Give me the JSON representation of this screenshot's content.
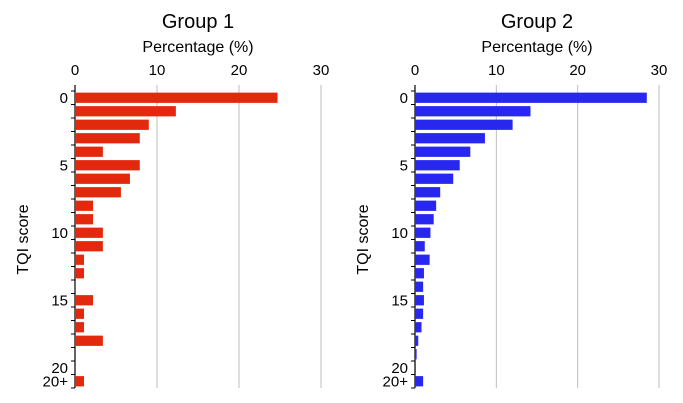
{
  "chart_data": [
    {
      "type": "bar",
      "orientation": "horizontal",
      "title": "Group 1",
      "xlabel": "Percentage (%)",
      "ylabel": "TQI score",
      "xlim": [
        0,
        30
      ],
      "xticks": [
        "0",
        "10",
        "20",
        "30"
      ],
      "categories": [
        "0",
        "1",
        "2",
        "3",
        "4",
        "5",
        "6",
        "7",
        "8",
        "9",
        "10",
        "11",
        "12",
        "13",
        "14",
        "15",
        "16",
        "17",
        "18",
        "19",
        "20",
        "20+"
      ],
      "ytick_labels": [
        {
          "category": "0",
          "label": "0"
        },
        {
          "category": "5",
          "label": "5"
        },
        {
          "category": "10",
          "label": "10"
        },
        {
          "category": "15",
          "label": "15"
        },
        {
          "category": "20",
          "label": "20"
        },
        {
          "category": "20+",
          "label": "20+"
        }
      ],
      "values": [
        24.7,
        12.3,
        9.0,
        7.9,
        3.4,
        7.9,
        6.7,
        5.6,
        2.2,
        2.2,
        3.4,
        3.4,
        1.1,
        1.1,
        0,
        2.2,
        1.1,
        1.1,
        3.4,
        0,
        0,
        1.1
      ],
      "color": "#e3290d",
      "grid": true
    },
    {
      "type": "bar",
      "orientation": "horizontal",
      "title": "Group 2",
      "xlabel": "Percentage (%)",
      "ylabel": "TQI score",
      "xlim": [
        0,
        30
      ],
      "xticks": [
        "0",
        "10",
        "20",
        "30"
      ],
      "categories": [
        "0",
        "1",
        "2",
        "3",
        "4",
        "5",
        "6",
        "7",
        "8",
        "9",
        "10",
        "11",
        "12",
        "13",
        "14",
        "15",
        "16",
        "17",
        "18",
        "19",
        "20",
        "20+"
      ],
      "ytick_labels": [
        {
          "category": "0",
          "label": "0"
        },
        {
          "category": "5",
          "label": "5"
        },
        {
          "category": "10",
          "label": "10"
        },
        {
          "category": "15",
          "label": "15"
        },
        {
          "category": "20",
          "label": "20"
        },
        {
          "category": "20+",
          "label": "20+"
        }
      ],
      "values": [
        28.5,
        14.2,
        12.0,
        8.6,
        6.8,
        5.5,
        4.7,
        3.1,
        2.6,
        2.3,
        1.9,
        1.2,
        1.8,
        1.1,
        1.0,
        1.1,
        1.0,
        0.8,
        0.4,
        0.2,
        0.1,
        1.0
      ],
      "color": "#2727f0",
      "grid": true
    }
  ]
}
